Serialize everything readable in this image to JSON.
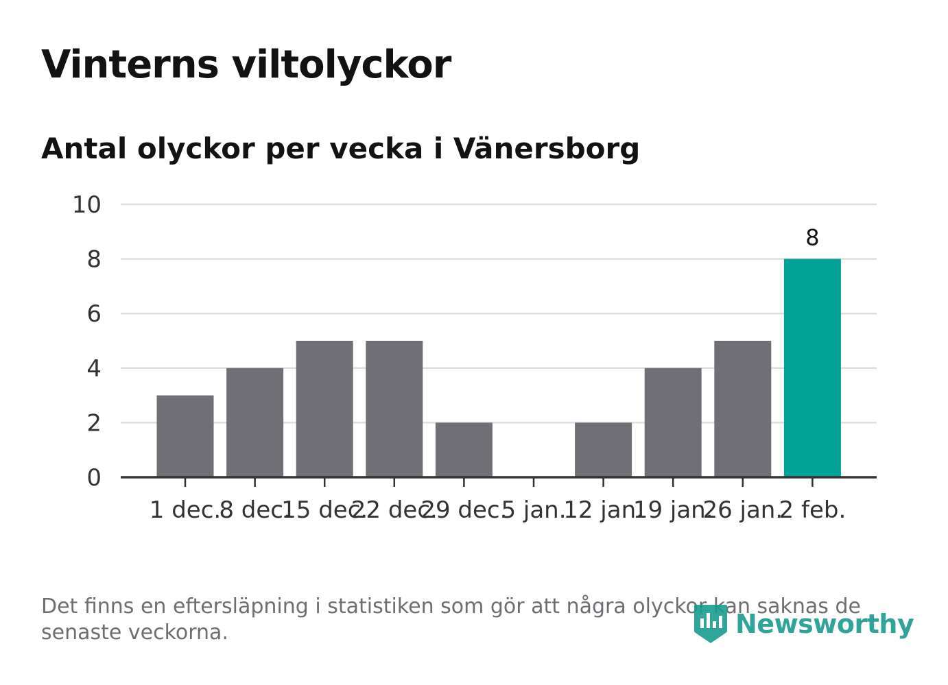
{
  "header": {
    "title": "Vinterns viltolyckor",
    "subtitle": "Antal olyckor per vecka i Vänersborg"
  },
  "footer": {
    "note": "Det finns en eftersläpning i statistiken som gör att några olyckor kan saknas de senaste veckorna.",
    "brand": "Newsworthy"
  },
  "colors": {
    "bar": "#706f75",
    "highlight": "#00a396",
    "grid": "#dddddd",
    "axis": "#333333",
    "brand": "#1a9b8f"
  },
  "chart_data": {
    "type": "bar",
    "categories": [
      "1 dec.",
      "8 dec.",
      "15 dec.",
      "22 dec.",
      "29 dec.",
      "5 jan.",
      "12 jan.",
      "19 jan.",
      "26 jan.",
      "2 feb."
    ],
    "values": [
      3,
      4,
      5,
      5,
      2,
      0,
      2,
      4,
      5,
      8
    ],
    "highlight_index": 9,
    "data_labels": [
      {
        "index": 9,
        "text": "8"
      }
    ],
    "yticks": [
      0,
      2,
      4,
      6,
      8,
      10
    ],
    "ylim": [
      0,
      10
    ],
    "xlabel": "",
    "ylabel": "",
    "grid": true
  }
}
